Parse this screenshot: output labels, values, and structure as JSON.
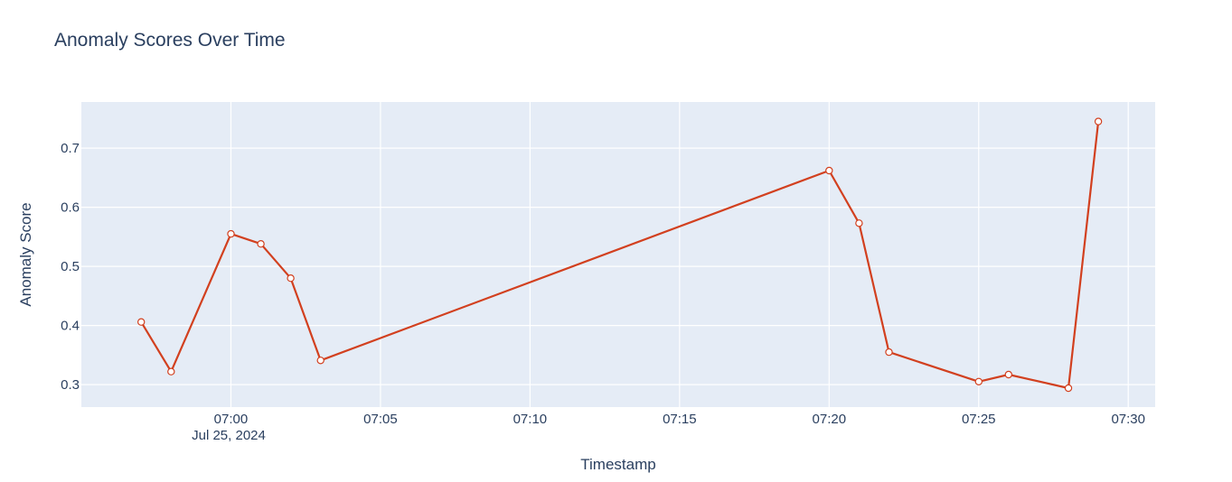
{
  "chart_data": {
    "type": "line",
    "title": "Anomaly Scores Over Time",
    "xlabel": "Timestamp",
    "ylabel": "Anomaly Score",
    "x_date_label": "Jul 25, 2024",
    "x_tick_labels": [
      "07:00",
      "07:05",
      "07:10",
      "07:15",
      "07:20",
      "07:25",
      "07:30"
    ],
    "x_tick_values": [
      "2024-07-25 07:00",
      "2024-07-25 07:05",
      "2024-07-25 07:10",
      "2024-07-25 07:15",
      "2024-07-25 07:20",
      "2024-07-25 07:25",
      "2024-07-25 07:30"
    ],
    "y_tick_labels": [
      "0.3",
      "0.4",
      "0.5",
      "0.6",
      "0.7"
    ],
    "y_tick_values": [
      0.3,
      0.4,
      0.5,
      0.6,
      0.7
    ],
    "xlim": [
      "2024-07-25 06:55",
      "2024-07-25 07:30.9"
    ],
    "ylim": [
      0.262,
      0.778
    ],
    "grid": true,
    "colors": {
      "line": "#d2401f",
      "plot_bg": "#e5ecf6",
      "grid": "#ffffff",
      "text": "#2a3f5f",
      "marker_fill": "#ffffff"
    },
    "series": [
      {
        "x": [
          "2024-07-25 06:57",
          "2024-07-25 06:58",
          "2024-07-25 07:00",
          "2024-07-25 07:01",
          "2024-07-25 07:02",
          "2024-07-25 07:03",
          "2024-07-25 07:20",
          "2024-07-25 07:21",
          "2024-07-25 07:22",
          "2024-07-25 07:25",
          "2024-07-25 07:26",
          "2024-07-25 07:28",
          "2024-07-25 07:29"
        ],
        "y": [
          0.406,
          0.322,
          0.555,
          0.538,
          0.48,
          0.341,
          0.662,
          0.573,
          0.355,
          0.305,
          0.317,
          0.294,
          0.745
        ]
      }
    ]
  }
}
